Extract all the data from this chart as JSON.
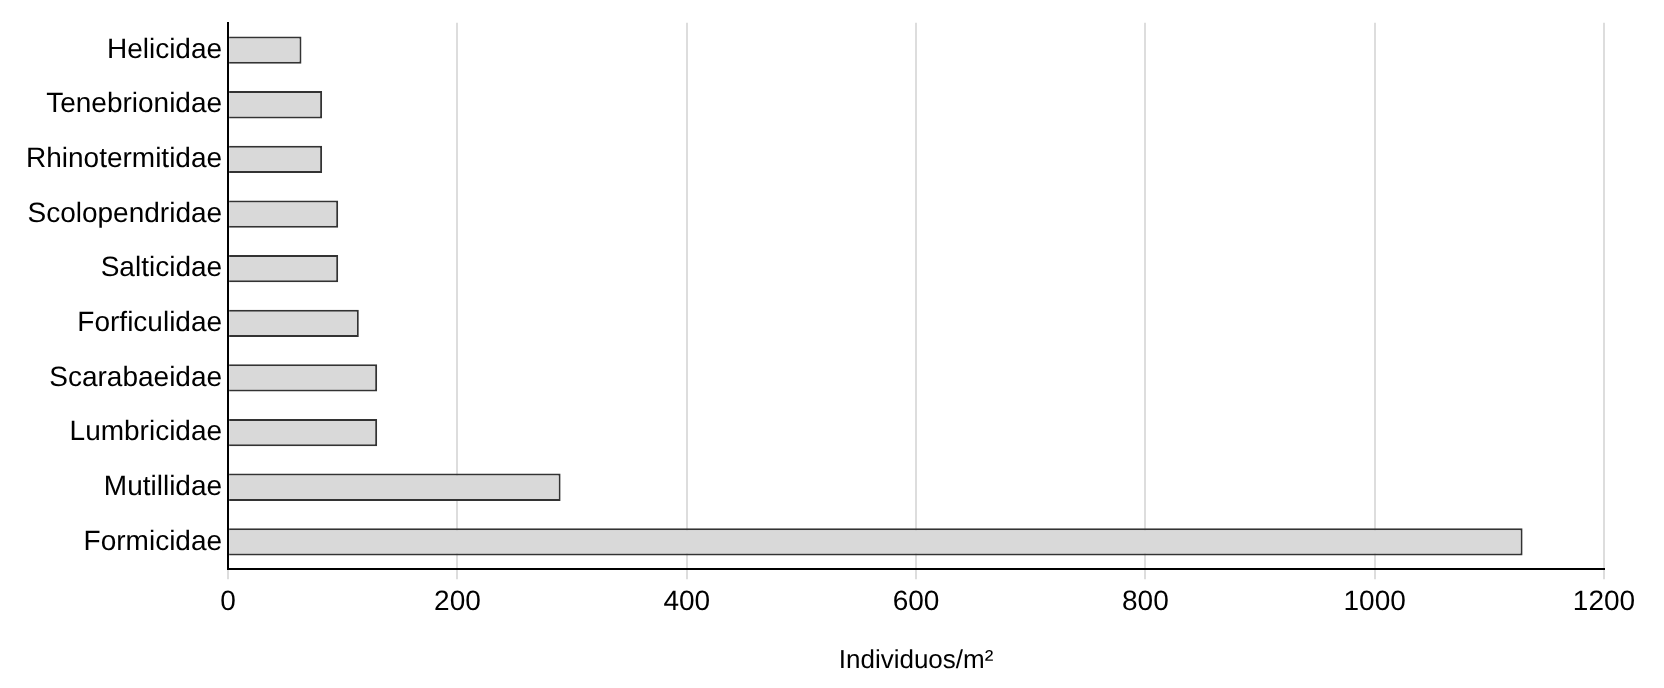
{
  "chart_data": {
    "type": "bar",
    "orientation": "horizontal",
    "xlabel": "Individuos/m²",
    "categories": [
      "Helicidae",
      "Tenebrionidae",
      "Rhinotermitidae",
      "Scolopendridae",
      "Salticidae",
      "Forficulidae",
      "Scarabaeidae",
      "Lumbricidae",
      "Mutillidae",
      "Formicidae"
    ],
    "values": [
      64,
      82,
      82,
      96,
      96,
      114,
      130,
      130,
      290,
      1129
    ],
    "color": "#d9d9d9",
    "xlim": [
      0,
      1200
    ],
    "xticks": [
      0,
      200,
      400,
      600,
      800,
      1000,
      1200
    ],
    "grid": "x",
    "legend": false
  }
}
